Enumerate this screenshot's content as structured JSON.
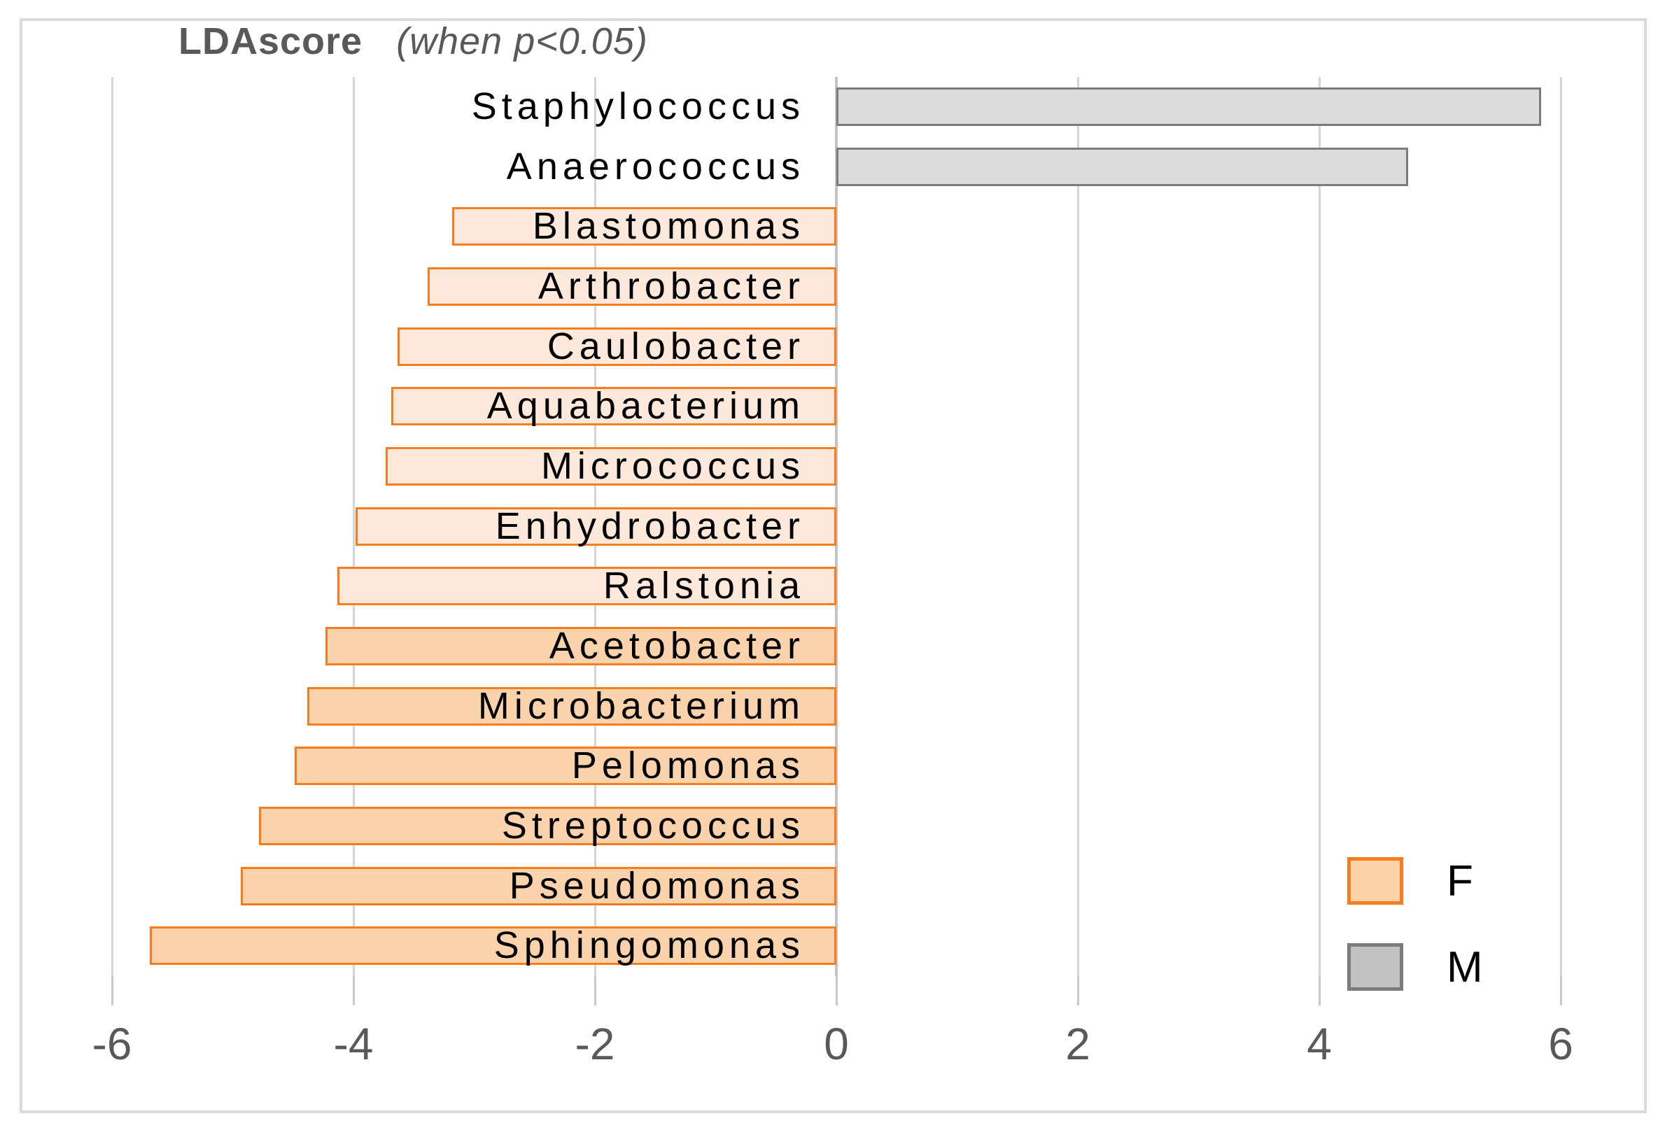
{
  "title": {
    "bold_part": "LDAscore",
    "italic_part": "(when p<0.05)"
  },
  "chart_data": {
    "type": "bar",
    "orientation": "horizontal",
    "title": "LDAscore (when p<0.05)",
    "xlabel": "",
    "ylabel": "",
    "xlim": [
      -6,
      6
    ],
    "grid": true,
    "x_ticks": [
      -6,
      -4,
      -2,
      0,
      2,
      4,
      6
    ],
    "x_tick_labels": [
      "-6",
      "-4",
      "-2",
      "0",
      "2",
      "4",
      "6"
    ],
    "legend_position": "bottom-right",
    "series_name": "LDA score",
    "items": [
      {
        "label": "Staphylococcus",
        "value": 5.8,
        "group": "M",
        "shade": "m"
      },
      {
        "label": "Anaerococcus",
        "value": 4.7,
        "group": "M",
        "shade": "m"
      },
      {
        "label": "Blastomonas",
        "value": -3.15,
        "group": "F",
        "shade": "light"
      },
      {
        "label": "Arthrobacter",
        "value": -3.35,
        "group": "F",
        "shade": "light"
      },
      {
        "label": "Caulobacter",
        "value": -3.6,
        "group": "F",
        "shade": "light"
      },
      {
        "label": "Aquabacterium",
        "value": -3.65,
        "group": "F",
        "shade": "light"
      },
      {
        "label": "Micrococcus",
        "value": -3.7,
        "group": "F",
        "shade": "light"
      },
      {
        "label": "Enhydrobacter",
        "value": -3.95,
        "group": "F",
        "shade": "light"
      },
      {
        "label": "Ralstonia",
        "value": -4.1,
        "group": "F",
        "shade": "light"
      },
      {
        "label": "Acetobacter",
        "value": -4.2,
        "group": "F",
        "shade": "dark"
      },
      {
        "label": "Microbacterium",
        "value": -4.35,
        "group": "F",
        "shade": "dark"
      },
      {
        "label": "Pelomonas",
        "value": -4.45,
        "group": "F",
        "shade": "dark"
      },
      {
        "label": "Streptococcus",
        "value": -4.75,
        "group": "F",
        "shade": "dark"
      },
      {
        "label": "Pseudomonas",
        "value": -4.9,
        "group": "F",
        "shade": "dark"
      },
      {
        "label": "Sphingomonas",
        "value": -5.65,
        "group": "F",
        "shade": "dark"
      }
    ],
    "legend": [
      {
        "label": "F",
        "swatch": "f"
      },
      {
        "label": "M",
        "swatch": "m"
      }
    ]
  },
  "colors": {
    "title_text": "#595959",
    "axis_text": "#595959",
    "category_text": "#000000",
    "frame_border": "#DBDBDB",
    "gridline": "#D6D6D6",
    "zero_line": "#C4C4C4",
    "tick_color": "#C9C9C9",
    "bar_m_fill": "#DCDCDC",
    "bar_m_border": "#7B7B7B",
    "bar_f_border": "#F57D1E",
    "bar_f_light_fill": "#FCE9DB",
    "bar_f_dark_fill": "#FAD2AB",
    "legend_f_fill": "#FBD3A9",
    "legend_m_fill": "#C2C2C2"
  }
}
